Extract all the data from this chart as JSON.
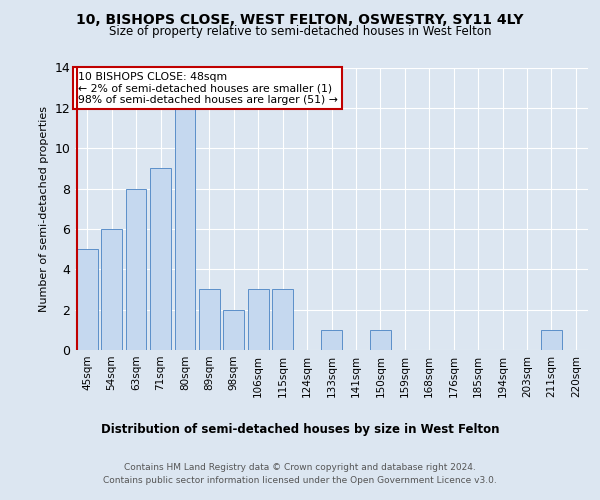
{
  "title1": "10, BISHOPS CLOSE, WEST FELTON, OSWESTRY, SY11 4LY",
  "title2": "Size of property relative to semi-detached houses in West Felton",
  "xlabel": "Distribution of semi-detached houses by size in West Felton",
  "ylabel": "Number of semi-detached properties",
  "categories": [
    "45sqm",
    "54sqm",
    "63sqm",
    "71sqm",
    "80sqm",
    "89sqm",
    "98sqm",
    "106sqm",
    "115sqm",
    "124sqm",
    "133sqm",
    "141sqm",
    "150sqm",
    "159sqm",
    "168sqm",
    "176sqm",
    "185sqm",
    "194sqm",
    "203sqm",
    "211sqm",
    "220sqm"
  ],
  "values": [
    5,
    6,
    8,
    9,
    12,
    3,
    2,
    3,
    3,
    0,
    1,
    0,
    1,
    0,
    0,
    0,
    0,
    0,
    0,
    1,
    0
  ],
  "highlight_color": "#c00000",
  "bar_color": "#c5d8ef",
  "bar_edge_color": "#5b8fc9",
  "annotation_title": "10 BISHOPS CLOSE: 48sqm",
  "annotation_line1": "← 2% of semi-detached houses are smaller (1)",
  "annotation_line2": "98% of semi-detached houses are larger (51) →",
  "ylim": [
    0,
    14
  ],
  "yticks": [
    0,
    2,
    4,
    6,
    8,
    10,
    12,
    14
  ],
  "footnote1": "Contains HM Land Registry data © Crown copyright and database right 2024.",
  "footnote2": "Contains public sector information licensed under the Open Government Licence v3.0.",
  "background_color": "#dce6f1",
  "plot_bg_color": "#dce6f1"
}
